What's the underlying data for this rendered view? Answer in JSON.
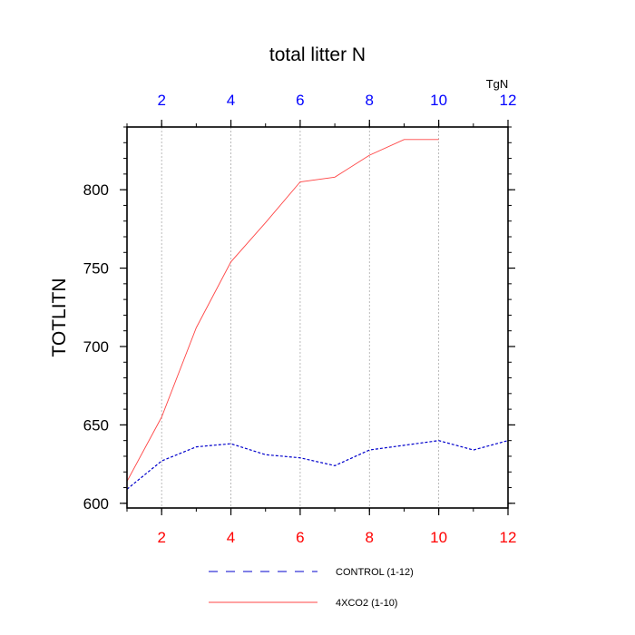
{
  "chart_data": {
    "type": "line",
    "title": "total litter N",
    "ylabel": "TOTLITN",
    "units_label": "TgN",
    "xlim": [
      1,
      12
    ],
    "ylim": [
      597,
      840
    ],
    "x_ticks": [
      2,
      4,
      6,
      8,
      10,
      12
    ],
    "y_ticks": [
      600,
      650,
      700,
      750,
      800
    ],
    "top_tick_color": "#0000ff",
    "bottom_tick_color": "#ff0000",
    "grid": "vertical dashed at x ticks",
    "legend_placement": "bottom",
    "series": [
      {
        "name": "CONTROL (1-12)",
        "color": "#0000cc",
        "style": "dashed",
        "x": [
          1,
          2,
          3,
          4,
          5,
          6,
          7,
          8,
          9,
          10,
          11,
          12
        ],
        "values": [
          609,
          627,
          636,
          638,
          631,
          629,
          624,
          634,
          637,
          640,
          634,
          640
        ]
      },
      {
        "name": "4XCO2 (1-10)",
        "color": "#ff4444",
        "style": "solid",
        "x": [
          1,
          2,
          3,
          4,
          5,
          6,
          7,
          8,
          9,
          10
        ],
        "values": [
          614,
          655,
          712,
          754,
          779,
          805,
          808,
          822,
          832,
          832
        ]
      }
    ]
  }
}
